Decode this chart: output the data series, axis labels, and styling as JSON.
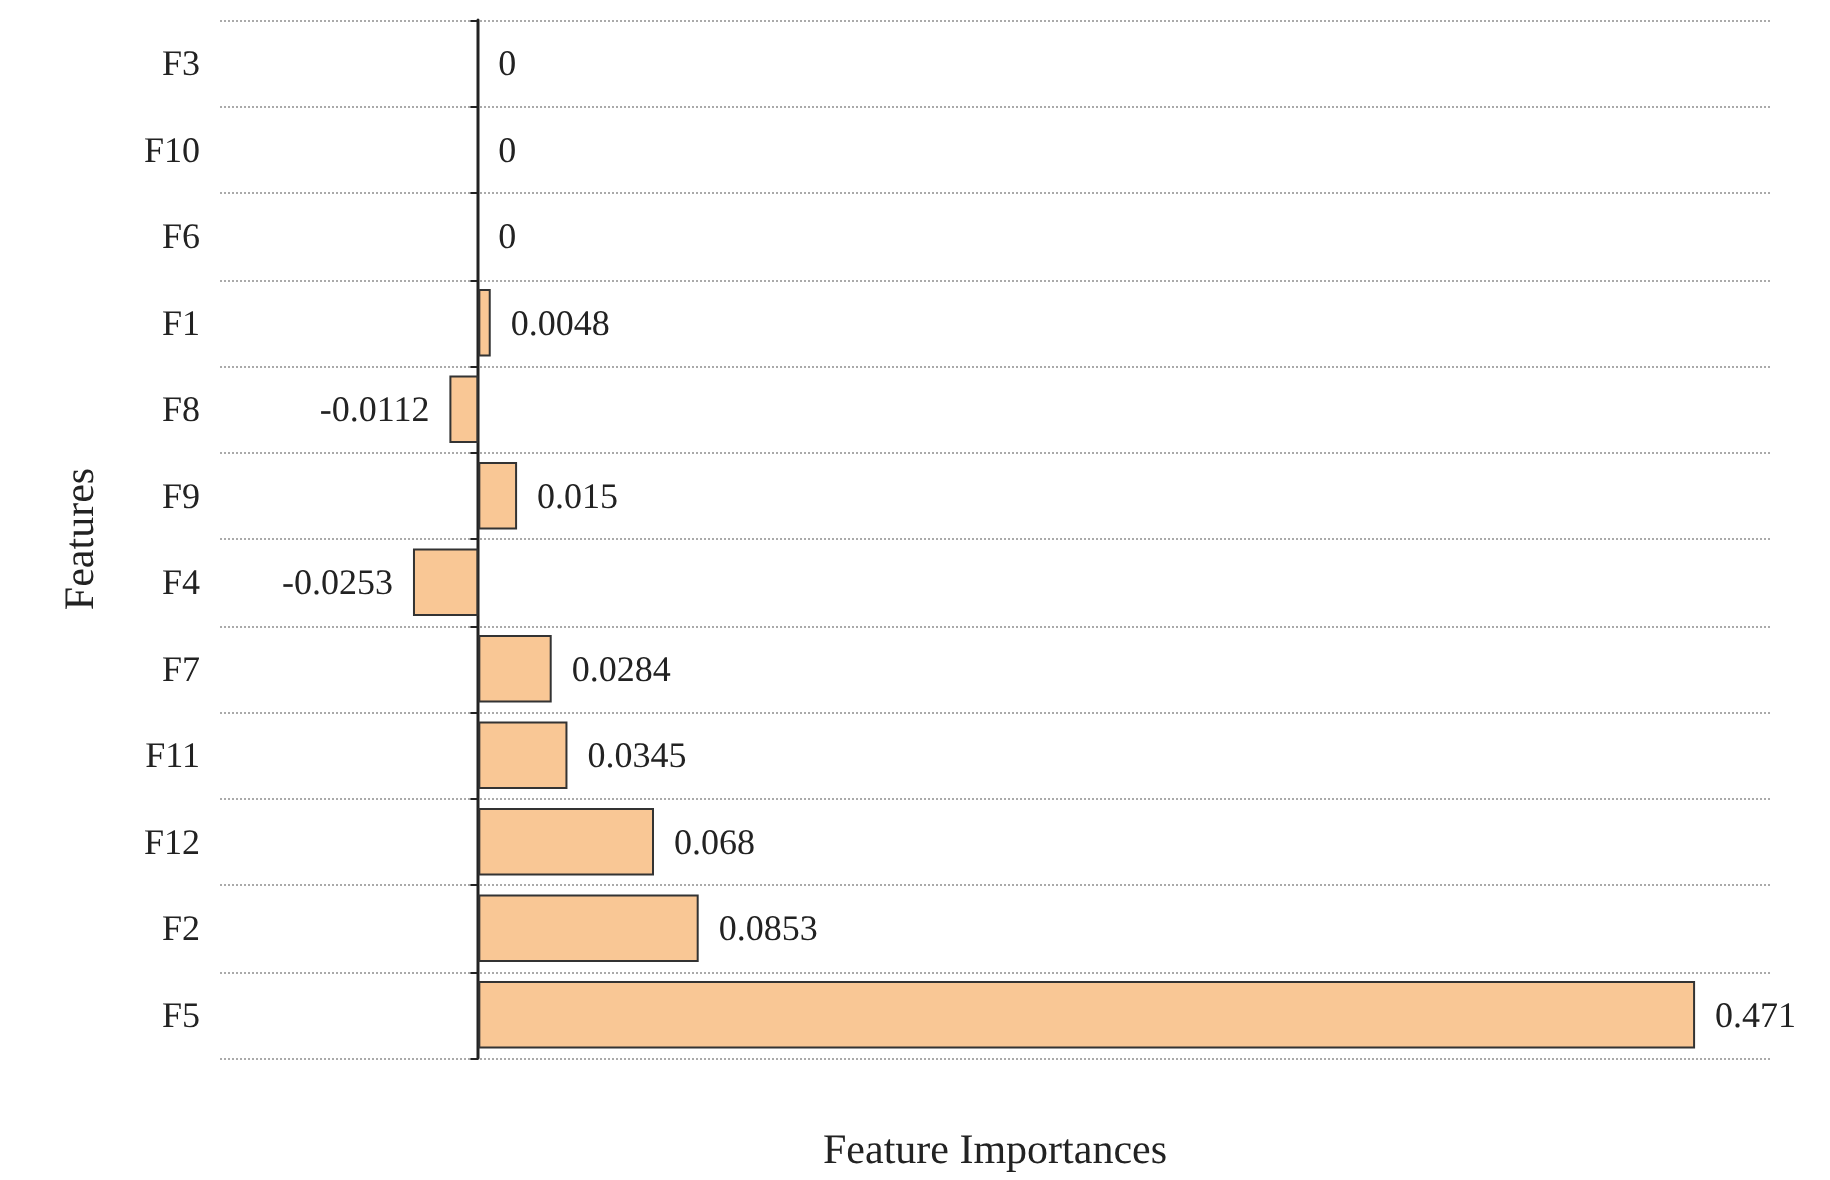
{
  "chart_data": {
    "type": "bar",
    "orientation": "horizontal",
    "xlabel": "Feature Importances",
    "ylabel": "Features",
    "categories": [
      "F3",
      "F10",
      "F6",
      "F1",
      "F8",
      "F9",
      "F4",
      "F7",
      "F11",
      "F12",
      "F2",
      "F5"
    ],
    "values": [
      0,
      0,
      0,
      0.0048,
      -0.0112,
      0.015,
      -0.0253,
      0.0284,
      0.0345,
      0.068,
      0.0853,
      0.471
    ],
    "color": "#f9c795",
    "data_labels": true,
    "grid": "y"
  }
}
